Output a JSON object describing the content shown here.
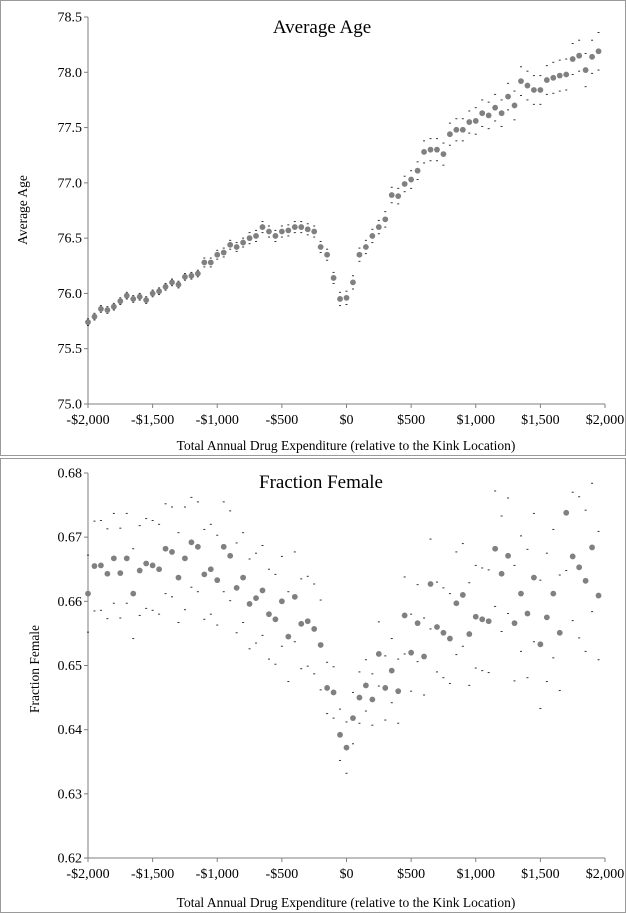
{
  "charts": [
    {
      "type": "scatter",
      "title": "Average Age",
      "xlabel": "Total Annual Drug Expenditure (relative to the Kink Location)",
      "ylabel": "Average Age",
      "xlim": [
        -2000,
        2000
      ],
      "ylim": [
        75.0,
        78.5
      ],
      "xticks": [
        -2000,
        -1500,
        -1000,
        -500,
        0,
        500,
        1000,
        1500,
        2000
      ],
      "xtick_labels": [
        "-$2,000",
        "-$1,500",
        "-$1,000",
        "-$500",
        "$0",
        "$500",
        "$1,000",
        "$1,500",
        "$2,000"
      ],
      "yticks": [
        75.0,
        75.5,
        76.0,
        76.5,
        77.0,
        77.5,
        78.0,
        78.5
      ],
      "ytick_labels": [
        "75.0",
        "75.5",
        "76.0",
        "76.5",
        "77.0",
        "77.5",
        "78.0",
        "78.5"
      ],
      "grid": false,
      "point_color": "#808080",
      "ci_color": "#333333",
      "x": [
        -2000,
        -1950,
        -1900,
        -1850,
        -1800,
        -1750,
        -1700,
        -1650,
        -1600,
        -1550,
        -1500,
        -1450,
        -1400,
        -1350,
        -1300,
        -1250,
        -1200,
        -1150,
        -1100,
        -1050,
        -1000,
        -950,
        -900,
        -850,
        -800,
        -750,
        -700,
        -650,
        -600,
        -550,
        -500,
        -450,
        -400,
        -350,
        -300,
        -250,
        -200,
        -150,
        -100,
        -50,
        0,
        50,
        100,
        150,
        200,
        250,
        300,
        350,
        400,
        450,
        500,
        550,
        600,
        650,
        700,
        750,
        800,
        850,
        900,
        950,
        1000,
        1050,
        1100,
        1150,
        1200,
        1250,
        1300,
        1350,
        1400,
        1450,
        1500,
        1550,
        1600,
        1650,
        1700,
        1750,
        1800,
        1850,
        1900,
        1950
      ],
      "y": [
        75.74,
        75.79,
        75.86,
        75.85,
        75.88,
        75.93,
        75.98,
        75.95,
        75.97,
        75.94,
        76.0,
        76.02,
        76.06,
        76.1,
        76.08,
        76.15,
        76.16,
        76.18,
        76.28,
        76.28,
        76.35,
        76.37,
        76.44,
        76.42,
        76.46,
        76.5,
        76.52,
        76.6,
        76.56,
        76.52,
        76.56,
        76.57,
        76.6,
        76.6,
        76.58,
        76.56,
        76.42,
        76.35,
        76.14,
        75.95,
        75.96,
        76.1,
        76.35,
        76.42,
        76.52,
        76.6,
        76.67,
        76.89,
        76.88,
        76.99,
        77.03,
        77.11,
        77.28,
        77.3,
        77.3,
        77.26,
        77.44,
        77.48,
        77.48,
        77.55,
        77.56,
        77.63,
        77.61,
        77.68,
        77.63,
        77.78,
        77.7,
        77.92,
        77.88,
        77.84,
        77.84,
        77.93,
        77.95,
        77.97,
        77.98,
        78.12,
        78.15,
        78.02,
        78.14,
        78.19
      ],
      "ci_halfwidth": [
        0.03,
        0.03,
        0.03,
        0.03,
        0.03,
        0.03,
        0.03,
        0.03,
        0.03,
        0.03,
        0.03,
        0.03,
        0.03,
        0.03,
        0.03,
        0.03,
        0.03,
        0.03,
        0.04,
        0.04,
        0.04,
        0.04,
        0.04,
        0.04,
        0.04,
        0.05,
        0.05,
        0.05,
        0.05,
        0.05,
        0.05,
        0.05,
        0.05,
        0.05,
        0.05,
        0.05,
        0.05,
        0.05,
        0.05,
        0.06,
        0.06,
        0.06,
        0.06,
        0.06,
        0.06,
        0.06,
        0.07,
        0.07,
        0.07,
        0.07,
        0.08,
        0.08,
        0.1,
        0.1,
        0.1,
        0.1,
        0.1,
        0.1,
        0.1,
        0.1,
        0.12,
        0.12,
        0.12,
        0.12,
        0.12,
        0.12,
        0.13,
        0.13,
        0.13,
        0.13,
        0.13,
        0.13,
        0.14,
        0.14,
        0.14,
        0.14,
        0.14,
        0.15,
        0.15,
        0.17
      ]
    },
    {
      "type": "scatter",
      "title": "Fraction Female",
      "xlabel": "Total Annual Drug Expenditure (relative to the Kink Location)",
      "ylabel": "Fraction Female",
      "xlim": [
        -2000,
        2000
      ],
      "ylim": [
        0.62,
        0.68
      ],
      "xticks": [
        -2000,
        -1500,
        -1000,
        -500,
        0,
        500,
        1000,
        1500,
        2000
      ],
      "xtick_labels": [
        "-$2,000",
        "-$1,500",
        "-$1,000",
        "-$500",
        "$0",
        "$500",
        "$1,000",
        "$1,500",
        "$2,000"
      ],
      "yticks": [
        0.62,
        0.63,
        0.64,
        0.65,
        0.66,
        0.67,
        0.68
      ],
      "ytick_labels": [
        "0.62",
        "0.63",
        "0.64",
        "0.65",
        "0.66",
        "0.67",
        "0.68"
      ],
      "grid": false,
      "point_color": "#808080",
      "ci_color": "#333333",
      "x": [
        -2000,
        -1950,
        -1900,
        -1850,
        -1800,
        -1750,
        -1700,
        -1650,
        -1600,
        -1550,
        -1500,
        -1450,
        -1400,
        -1350,
        -1300,
        -1250,
        -1200,
        -1150,
        -1100,
        -1050,
        -1000,
        -950,
        -900,
        -850,
        -800,
        -750,
        -700,
        -650,
        -600,
        -550,
        -500,
        -450,
        -400,
        -350,
        -300,
        -250,
        -200,
        -150,
        -100,
        -50,
        0,
        50,
        100,
        150,
        200,
        250,
        300,
        350,
        400,
        450,
        500,
        550,
        600,
        650,
        700,
        750,
        800,
        850,
        900,
        950,
        1000,
        1050,
        1100,
        1150,
        1200,
        1250,
        1300,
        1350,
        1400,
        1450,
        1500,
        1550,
        1600,
        1650,
        1700,
        1750,
        1800,
        1850,
        1900,
        1950
      ],
      "y": [
        0.6612,
        0.6655,
        0.6656,
        0.6643,
        0.6667,
        0.6644,
        0.6667,
        0.6612,
        0.6648,
        0.6659,
        0.6656,
        0.665,
        0.6682,
        0.6677,
        0.6637,
        0.6667,
        0.6692,
        0.6685,
        0.6642,
        0.665,
        0.6633,
        0.6685,
        0.6671,
        0.6621,
        0.6637,
        0.6596,
        0.6605,
        0.6617,
        0.658,
        0.6572,
        0.66,
        0.6545,
        0.6607,
        0.6565,
        0.6569,
        0.6557,
        0.6532,
        0.6465,
        0.6458,
        0.6392,
        0.6372,
        0.6418,
        0.645,
        0.6469,
        0.6447,
        0.6518,
        0.6465,
        0.6492,
        0.646,
        0.6578,
        0.652,
        0.6566,
        0.6514,
        0.6627,
        0.656,
        0.6551,
        0.6542,
        0.6597,
        0.661,
        0.6549,
        0.6576,
        0.6572,
        0.6569,
        0.6682,
        0.6643,
        0.6671,
        0.6566,
        0.6612,
        0.6581,
        0.6637,
        0.6533,
        0.6575,
        0.6612,
        0.6551,
        0.6738,
        0.667,
        0.6653,
        0.6632,
        0.6684,
        0.6609
      ],
      "ci_halfwidth": [
        0.006,
        0.007,
        0.007,
        0.007,
        0.007,
        0.007,
        0.007,
        0.007,
        0.007,
        0.007,
        0.007,
        0.007,
        0.007,
        0.007,
        0.007,
        0.008,
        0.007,
        0.007,
        0.007,
        0.007,
        0.007,
        0.007,
        0.007,
        0.007,
        0.007,
        0.007,
        0.007,
        0.007,
        0.007,
        0.007,
        0.007,
        0.007,
        0.007,
        0.007,
        0.007,
        0.007,
        0.007,
        0.004,
        0.004,
        0.004,
        0.004,
        0.004,
        0.004,
        0.004,
        0.004,
        0.005,
        0.005,
        0.005,
        0.005,
        0.006,
        0.006,
        0.006,
        0.006,
        0.007,
        0.007,
        0.007,
        0.007,
        0.008,
        0.008,
        0.008,
        0.008,
        0.008,
        0.008,
        0.009,
        0.009,
        0.009,
        0.009,
        0.009,
        0.01,
        0.01,
        0.01,
        0.01,
        0.01,
        0.009,
        0.009,
        0.01,
        0.011,
        0.011,
        0.01,
        0.01
      ]
    }
  ]
}
